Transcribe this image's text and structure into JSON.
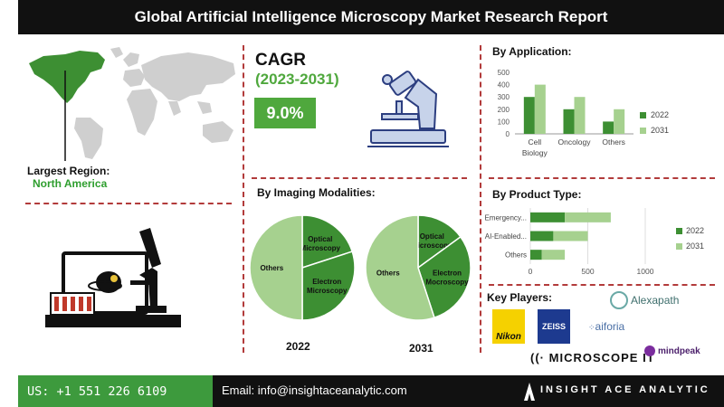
{
  "header": {
    "title": "Global Artificial Intelligence Microscopy Market Research Report"
  },
  "cagr": {
    "title": "CAGR",
    "period": "(2023-2031)",
    "value": "9.0%"
  },
  "region": {
    "label": "Largest Region:",
    "value": "North America"
  },
  "colors": {
    "dark_green": "#3d8f33",
    "light_green": "#a6d18f",
    "accent_red": "#b23b3b",
    "footer_green": "#3d9a3d"
  },
  "chart_data": [
    {
      "id": "by_application",
      "type": "bar",
      "title": "By Application:",
      "categories": [
        "Cell Biology",
        "Oncology",
        "Others"
      ],
      "series": [
        {
          "name": "2022",
          "values": [
            300,
            200,
            100
          ]
        },
        {
          "name": "2031",
          "values": [
            400,
            300,
            200
          ]
        }
      ],
      "ylim": [
        0,
        500
      ],
      "yticks": [
        0,
        100,
        200,
        300,
        400,
        500
      ],
      "grid": false,
      "legend": "right"
    },
    {
      "id": "by_imaging_modalities",
      "type": "pie",
      "title": "By Imaging Modalities:",
      "pies": [
        {
          "label": "2022",
          "slices": [
            {
              "name": "Optical Microscopy",
              "value": 20
            },
            {
              "name": "Electron Microscopy",
              "value": 30
            },
            {
              "name": "Others",
              "value": 50
            }
          ]
        },
        {
          "label": "2031",
          "slices": [
            {
              "name": "Optical Microscopy",
              "value": 15
            },
            {
              "name": "Electron Mocroscopy",
              "value": 30
            },
            {
              "name": "Others",
              "value": 55
            }
          ]
        }
      ]
    },
    {
      "id": "by_product_type",
      "type": "bar",
      "orientation": "horizontal",
      "title": "By Product Type:",
      "categories": [
        "Emergency...",
        "AI-Enabled...",
        "Others"
      ],
      "series": [
        {
          "name": "2022",
          "values": [
            300,
            200,
            100
          ]
        },
        {
          "name": "2031",
          "values": [
            400,
            300,
            200
          ]
        }
      ],
      "stacked": true,
      "xlim": [
        0,
        1000
      ],
      "xticks": [
        0,
        500,
        1000
      ],
      "grid": true,
      "legend": "right"
    }
  ],
  "key_players": {
    "title": "Key Players:",
    "logos": [
      "Nikon",
      "ZEISS",
      "aiforia",
      "Alexapath",
      "MICROSCOPE IT",
      "mindpeak"
    ]
  },
  "footer": {
    "phone": "US: +1 551 226 6109",
    "email": "Email: info@insightaceanalytic.com",
    "brand": "INSIGHT ACE ANALYTIC"
  }
}
